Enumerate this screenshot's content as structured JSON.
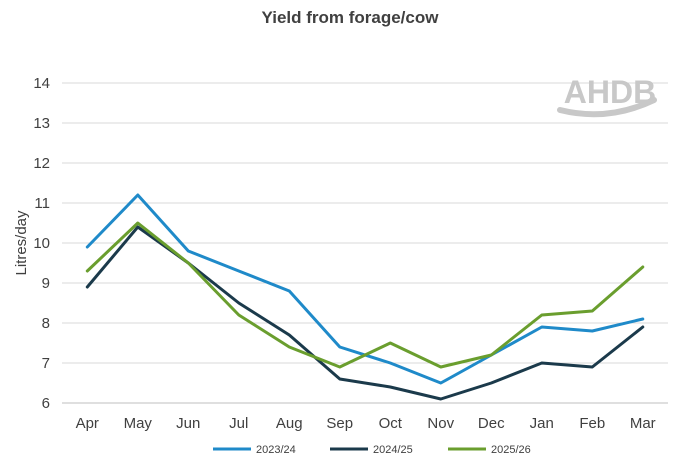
{
  "chart_data": {
    "type": "line",
    "title": "Yield from forage/cow",
    "ylabel": "Litres/day",
    "xlabel": "",
    "ylim": [
      6,
      14
    ],
    "yticks": [
      6,
      7,
      8,
      9,
      10,
      11,
      12,
      13,
      14
    ],
    "grid": true,
    "legend_placement": "bottom",
    "categories": [
      "Apr",
      "May",
      "Jun",
      "Jul",
      "Aug",
      "Sep",
      "Oct",
      "Nov",
      "Dec",
      "Jan",
      "Feb",
      "Mar"
    ],
    "series": [
      {
        "name": "2023/24",
        "color": "#1f8ac9",
        "values": [
          9.9,
          11.2,
          9.8,
          9.3,
          8.8,
          7.4,
          7.0,
          6.5,
          7.2,
          7.9,
          7.8,
          8.1
        ]
      },
      {
        "name": "2024/25",
        "color": "#1b3a4b",
        "values": [
          8.9,
          10.4,
          9.5,
          8.5,
          7.7,
          6.6,
          6.4,
          6.1,
          6.5,
          7.0,
          6.9,
          7.9
        ]
      },
      {
        "name": "2025/26",
        "color": "#6a9e2e",
        "values": [
          9.3,
          10.5,
          9.5,
          8.2,
          7.4,
          6.9,
          7.5,
          6.9,
          7.2,
          8.2,
          8.3,
          9.4
        ]
      }
    ]
  },
  "logo": {
    "text": "AHDB",
    "color": "#c8c8c8"
  }
}
